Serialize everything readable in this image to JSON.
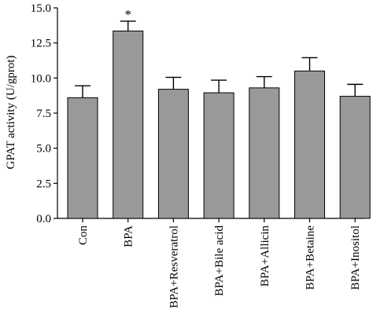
{
  "chart_data": {
    "type": "bar",
    "categories": [
      "Con",
      "BPA",
      "BPA+Resveratrol",
      "BPA+Bile acid",
      "BPA+Allicin",
      "BPA+Betaine",
      "BPA+Inositol"
    ],
    "values": [
      8.6,
      13.35,
      9.2,
      8.95,
      9.3,
      10.5,
      8.7
    ],
    "errors": [
      0.85,
      0.7,
      0.85,
      0.9,
      0.8,
      0.95,
      0.85
    ],
    "annotations": [
      "",
      "*",
      "",
      "",
      "",
      "",
      ""
    ],
    "ylabel": "GPAT activity (U/gprot)",
    "xlabel": "",
    "ylim": [
      0.0,
      15.0
    ],
    "yticks": [
      "0.0",
      "2.5",
      "5.0",
      "7.5",
      "10.0",
      "12.5",
      "15.0"
    ],
    "bar_color": "#999999",
    "grid": false,
    "legend": "none"
  }
}
